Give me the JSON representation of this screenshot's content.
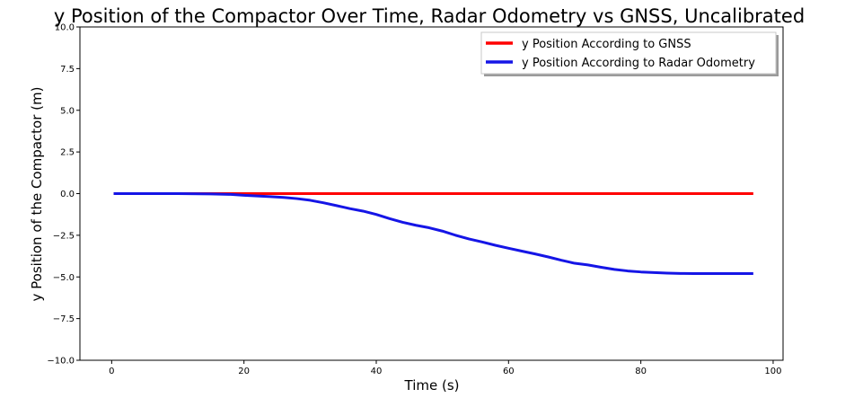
{
  "chart_data": {
    "type": "line",
    "title": "y Position of the Compactor Over Time, Radar Odometry vs GNSS, Uncalibrated",
    "xlabel": "Time (s)",
    "ylabel": "y Position of the Compactor (m)",
    "xlim": [
      -4.8,
      101.5
    ],
    "ylim": [
      -10.0,
      10.0
    ],
    "xticks": [
      0,
      20,
      40,
      60,
      80,
      100
    ],
    "xtick_labels": [
      "0",
      "20",
      "40",
      "60",
      "80",
      "100"
    ],
    "yticks": [
      10.0,
      7.5,
      5.0,
      2.5,
      0.0,
      -2.5,
      -5.0,
      -7.5,
      -10.0
    ],
    "ytick_labels": [
      "10.0",
      "7.5",
      "5.0",
      "2.5",
      "0.0",
      "−2.5",
      "−5.0",
      "−7.5",
      "−10.0"
    ],
    "grid": false,
    "legend_position": "top-right",
    "series": [
      {
        "name": "y Position According to GNSS",
        "color": "#ff0000",
        "x": [
          0.3,
          97
        ],
        "y": [
          0.0,
          0.0
        ]
      },
      {
        "name": "y Position According to Radar Odometry",
        "color": "#1515e6",
        "x": [
          0.3,
          5,
          10,
          15,
          18,
          20,
          22,
          24,
          26,
          28,
          30,
          32,
          34,
          36,
          38,
          40,
          42,
          44,
          46,
          48,
          50,
          52,
          54,
          56,
          58,
          60,
          62,
          64,
          66,
          68,
          70,
          72,
          74,
          76,
          78,
          80,
          82,
          84,
          86,
          88,
          90,
          92,
          94,
          97
        ],
        "y": [
          0.0,
          0.0,
          0.0,
          -0.02,
          -0.05,
          -0.1,
          -0.14,
          -0.18,
          -0.23,
          -0.3,
          -0.4,
          -0.55,
          -0.72,
          -0.9,
          -1.05,
          -1.25,
          -1.5,
          -1.72,
          -1.9,
          -2.05,
          -2.25,
          -2.5,
          -2.72,
          -2.9,
          -3.1,
          -3.28,
          -3.45,
          -3.62,
          -3.8,
          -4.0,
          -4.18,
          -4.28,
          -4.42,
          -4.55,
          -4.64,
          -4.7,
          -4.74,
          -4.77,
          -4.79,
          -4.8,
          -4.8,
          -4.8,
          -4.8,
          -4.8
        ]
      }
    ]
  }
}
